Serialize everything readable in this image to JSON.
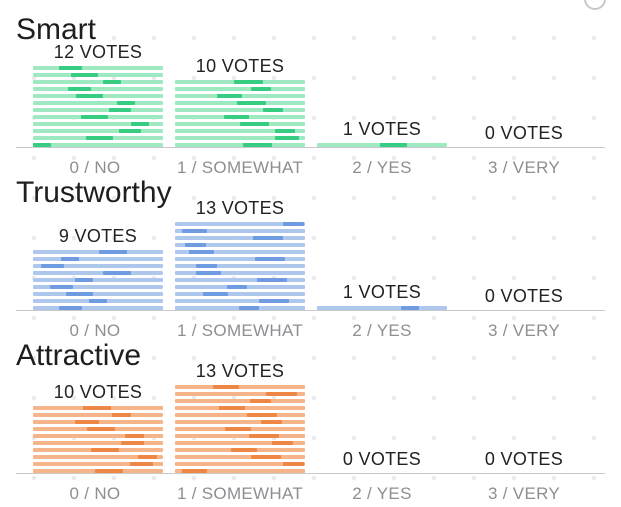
{
  "categories": [
    "0 / NO",
    "1 / SOMEWHAT",
    "2 / YES",
    "3 / VERY"
  ],
  "vote_suffix": "VOTES",
  "sections": [
    {
      "title": "Smart",
      "votes": [
        12,
        10,
        1,
        0
      ],
      "colors": {
        "light": "#9ee8c2",
        "dark": "#36cd82"
      }
    },
    {
      "title": "Trustworthy",
      "votes": [
        9,
        13,
        1,
        0
      ],
      "colors": {
        "light": "#aec7ec",
        "dark": "#6f9be0"
      }
    },
    {
      "title": "Attractive",
      "votes": [
        10,
        13,
        0,
        0
      ],
      "colors": {
        "light": "#f6b48a",
        "dark": "#ee8746"
      }
    }
  ],
  "chart_data": [
    {
      "type": "bar",
      "title": "Smart",
      "categories": [
        "0 / NO",
        "1 / SOMEWHAT",
        "2 / YES",
        "3 / VERY"
      ],
      "values": [
        12,
        10,
        1,
        0
      ]
    },
    {
      "type": "bar",
      "title": "Trustworthy",
      "categories": [
        "0 / NO",
        "1 / SOMEWHAT",
        "2 / YES",
        "3 / VERY"
      ],
      "values": [
        9,
        13,
        1,
        0
      ]
    },
    {
      "type": "bar",
      "title": "Attractive",
      "categories": [
        "0 / NO",
        "1 / SOMEWHAT",
        "2 / YES",
        "3 / VERY"
      ],
      "values": [
        10,
        13,
        0,
        0
      ]
    }
  ]
}
